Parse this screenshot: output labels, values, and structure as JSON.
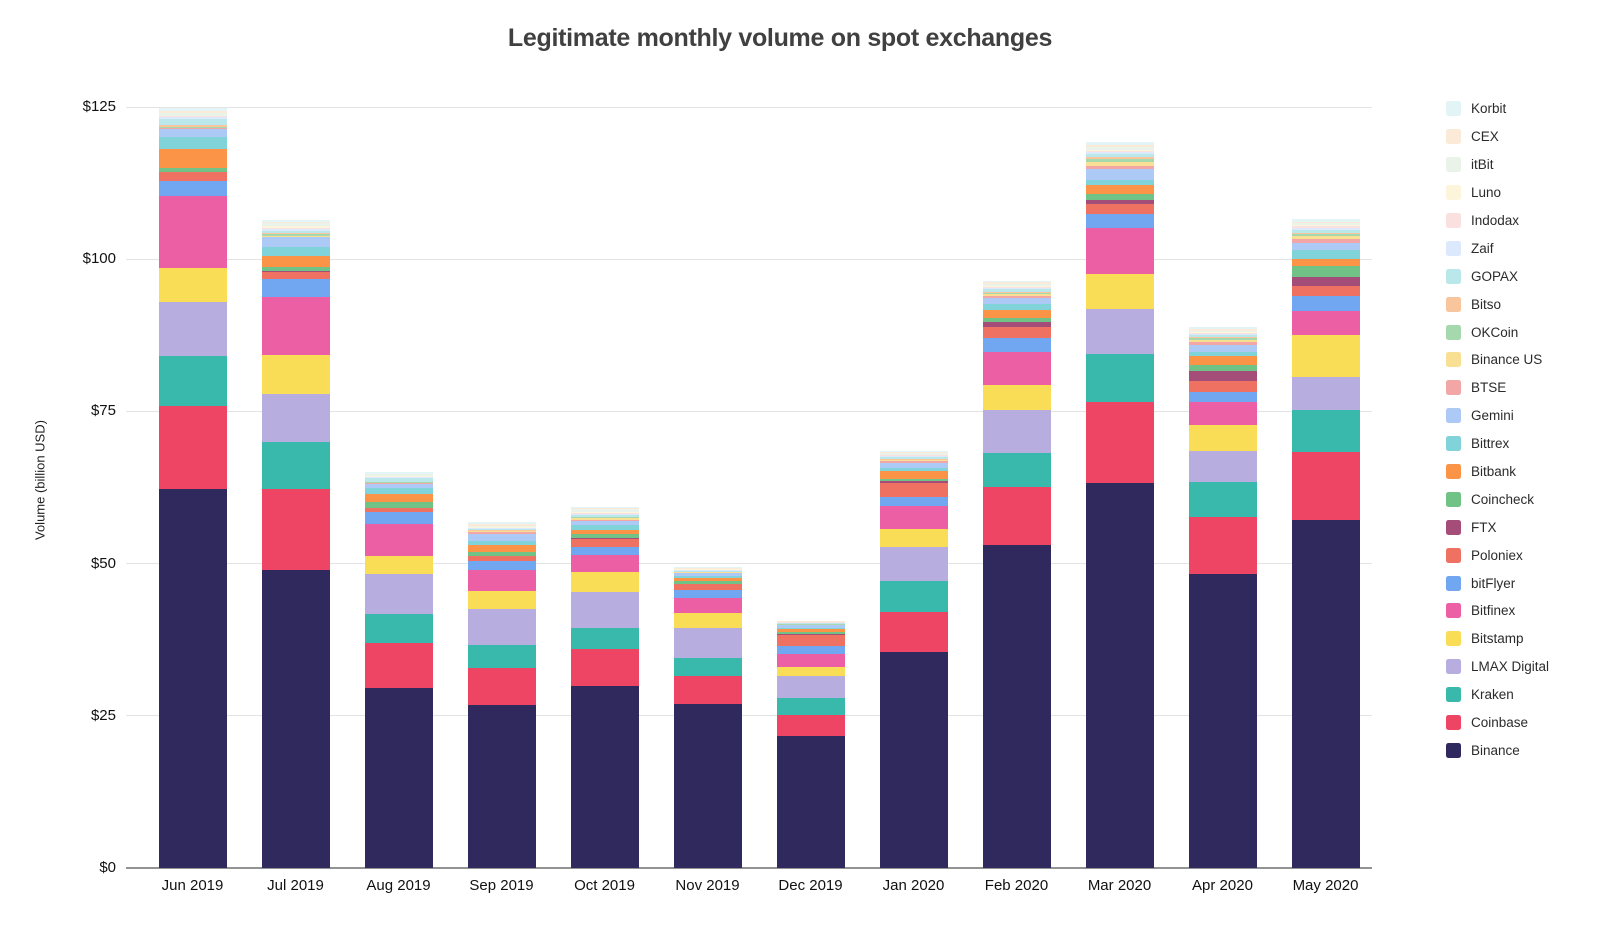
{
  "chart_data": {
    "type": "bar",
    "stacked": true,
    "title": "Legitimate monthly volume on spot exchanges",
    "xlabel": "",
    "ylabel": "Volume (billion USD)",
    "ylim": [
      0,
      125
    ],
    "ytick_step": 25,
    "yticks": [
      "$0",
      "$25",
      "$50",
      "$75",
      "$100",
      "$125"
    ],
    "grid": true,
    "legend_position": "right",
    "legend_order": "reverse of stacking order (Korbit at top, Binance at bottom)",
    "categories": [
      "Jun 2019",
      "Jul 2019",
      "Aug 2019",
      "Sep 2019",
      "Oct 2019",
      "Nov 2019",
      "Dec 2019",
      "Jan 2020",
      "Feb 2020",
      "Mar 2020",
      "Apr 2020",
      "May 2020"
    ],
    "series": [
      {
        "name": "Binance",
        "color": "#2f295e",
        "values": [
          62.3,
          49.0,
          29.6,
          26.8,
          29.9,
          26.9,
          21.7,
          35.5,
          53.1,
          63.3,
          48.3,
          57.1
        ]
      },
      {
        "name": "Coinbase",
        "color": "#ef4565",
        "values": [
          13.6,
          13.3,
          7.4,
          6.0,
          6.0,
          4.7,
          3.5,
          6.5,
          9.5,
          13.2,
          9.3,
          11.2
        ]
      },
      {
        "name": "Kraken",
        "color": "#39b9ab",
        "values": [
          8.2,
          7.6,
          4.8,
          3.9,
          3.5,
          2.9,
          2.7,
          5.1,
          5.6,
          7.9,
          5.8,
          6.9
        ]
      },
      {
        "name": "LMAX Digital",
        "color": "#b7addf",
        "values": [
          8.8,
          8.0,
          6.5,
          5.8,
          6.0,
          5.0,
          3.7,
          5.6,
          7.1,
          7.4,
          5.1,
          5.5
        ]
      },
      {
        "name": "Bitstamp",
        "color": "#fadd57",
        "values": [
          5.7,
          6.3,
          3.0,
          3.0,
          3.2,
          2.4,
          1.4,
          3.0,
          4.1,
          5.8,
          4.3,
          6.8
        ]
      },
      {
        "name": "Bitfinex",
        "color": "#ed5fa4",
        "values": [
          11.8,
          9.6,
          5.2,
          3.4,
          2.9,
          2.5,
          2.2,
          3.8,
          5.4,
          7.5,
          3.8,
          4.0
        ]
      },
      {
        "name": "bitFlyer",
        "color": "#71a6f1",
        "values": [
          2.4,
          3.0,
          2.0,
          1.6,
          1.3,
          1.3,
          1.3,
          1.5,
          2.2,
          2.4,
          1.6,
          2.5
        ]
      },
      {
        "name": "Poloniex",
        "color": "#ee7162",
        "values": [
          1.5,
          1.1,
          0.6,
          0.7,
          1.3,
          0.9,
          1.8,
          2.2,
          1.9,
          1.5,
          1.8,
          1.6
        ]
      },
      {
        "name": "FTX",
        "color": "#a54d79",
        "values": [
          0,
          0.2,
          0.1,
          0.1,
          0.1,
          0.1,
          0.1,
          0.4,
          0.8,
          0.7,
          1.6,
          1.5
        ]
      },
      {
        "name": "Coincheck",
        "color": "#70c286",
        "values": [
          0.7,
          0.6,
          1.0,
          0.6,
          0.6,
          0.4,
          0.4,
          0.3,
          0.7,
          1.1,
          1.1,
          1.8
        ]
      },
      {
        "name": "Bitbank",
        "color": "#fb9446",
        "values": [
          3.1,
          1.9,
          1.3,
          1.2,
          0.8,
          0.5,
          0.4,
          1.3,
          1.3,
          1.4,
          1.4,
          1.2
        ]
      },
      {
        "name": "Bittrex",
        "color": "#7fd3d9",
        "values": [
          2.0,
          1.5,
          1.0,
          0.7,
          0.7,
          0.4,
          0.3,
          0.6,
          0.9,
          0.8,
          0.7,
          1.4
        ]
      },
      {
        "name": "Gemini",
        "color": "#adc9f6",
        "values": [
          1.3,
          1.5,
          0.6,
          1.1,
          0.7,
          0.4,
          0.4,
          0.8,
          1.1,
          1.8,
          1.2,
          1.1
        ]
      },
      {
        "name": "BTSE",
        "color": "#f2a6a6",
        "values": [
          0.1,
          0.1,
          0.1,
          0.3,
          0.2,
          0.1,
          0.05,
          0.2,
          0.3,
          0.6,
          0.4,
          0.7
        ]
      },
      {
        "name": "Binance US",
        "color": "#f9df94",
        "values": [
          0.1,
          0.2,
          0.1,
          0.1,
          0.3,
          0.1,
          0.05,
          0.2,
          0.3,
          0.6,
          0.4,
          0.6
        ]
      },
      {
        "name": "OKCoin",
        "color": "#a5d8ad",
        "values": [
          0.2,
          0.2,
          0.1,
          0.1,
          0.1,
          0.05,
          0.05,
          0.1,
          0.2,
          0.5,
          0.3,
          0.3
        ]
      },
      {
        "name": "Bitso",
        "color": "#f8c59c",
        "values": [
          0.3,
          0.2,
          0.1,
          0.1,
          0.1,
          0.05,
          0.05,
          0.1,
          0.2,
          0.3,
          0.2,
          0.2
        ]
      },
      {
        "name": "GOPAX",
        "color": "#bae7ea",
        "values": [
          0.9,
          0.4,
          0.5,
          0.2,
          0.3,
          0.15,
          0.1,
          0.3,
          0.4,
          0.5,
          0.3,
          0.5
        ]
      },
      {
        "name": "Zaif",
        "color": "#dce8fb",
        "values": [
          0.3,
          0.3,
          0.2,
          0.15,
          0.25,
          0.1,
          0.1,
          0.2,
          0.25,
          0.3,
          0.2,
          0.3
        ]
      },
      {
        "name": "Indodax",
        "color": "#fbe0e0",
        "values": [
          0.2,
          0.2,
          0.1,
          0.1,
          0.1,
          0.05,
          0.05,
          0.1,
          0.15,
          0.2,
          0.1,
          0.2
        ]
      },
      {
        "name": "Luno",
        "color": "#fdf4dc",
        "values": [
          0.1,
          0.2,
          0.1,
          0.1,
          0.2,
          0.05,
          0.05,
          0.1,
          0.1,
          0.2,
          0.1,
          0.2
        ]
      },
      {
        "name": "itBit",
        "color": "#e9f3ea",
        "values": [
          0.5,
          0.5,
          0.3,
          0.2,
          0.4,
          0.15,
          0.1,
          0.3,
          0.4,
          0.4,
          0.3,
          0.4
        ]
      },
      {
        "name": "CEX",
        "color": "#fcead9",
        "values": [
          0.2,
          0.3,
          0.1,
          0.25,
          0.2,
          0.1,
          0.05,
          0.15,
          0.2,
          0.3,
          0.2,
          0.2
        ]
      },
      {
        "name": "Korbit",
        "color": "#e3f4f6",
        "values": [
          0.5,
          0.2,
          0.2,
          0.3,
          0.2,
          0.1,
          0.1,
          0.2,
          0.3,
          0.5,
          0.3,
          0.5
        ]
      }
    ],
    "style": {
      "gridline_color": "#e4e4e4",
      "axis_line_color": "#939393",
      "title_color": "#404040",
      "tick_label_color": "#111111",
      "legend_label_color": "#2b2b2b",
      "background": "#ffffff"
    }
  }
}
